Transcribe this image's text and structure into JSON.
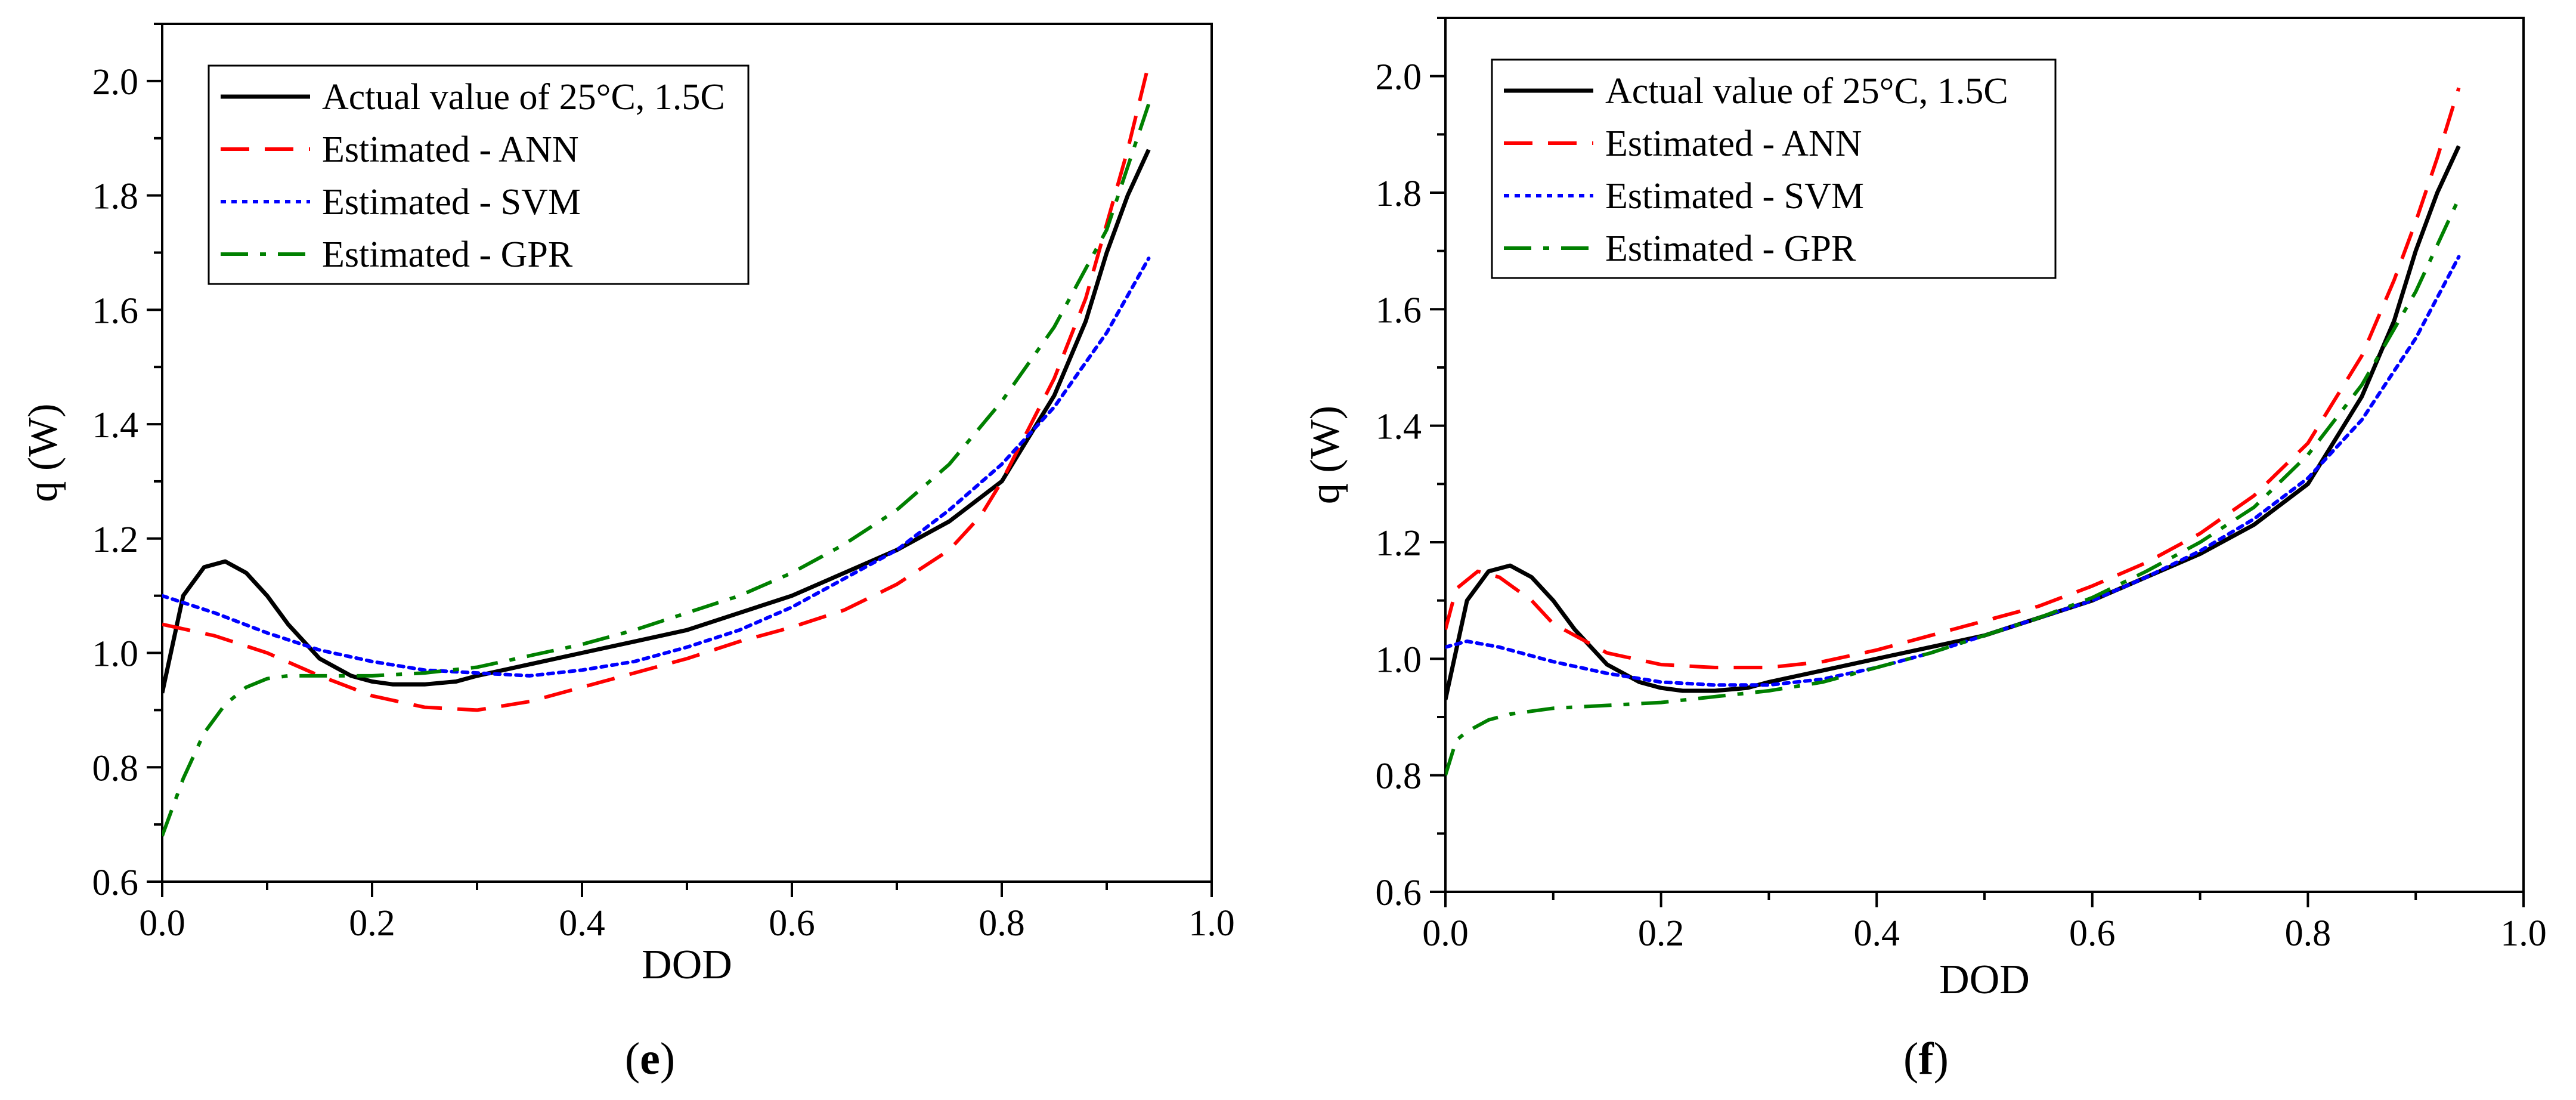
{
  "colors": {
    "actual": "#000000",
    "ann": "#ff0000",
    "svm": "#0000ff",
    "gpr": "#008000"
  },
  "panels": [
    {
      "label": "e"
    },
    {
      "label": "f"
    }
  ],
  "chart_data": [
    {
      "type": "line",
      "panel": "e",
      "xlabel": "DOD",
      "ylabel": "q (W)",
      "xlim": [
        0.0,
        1.0
      ],
      "ylim": [
        0.6,
        2.1
      ],
      "xticks": [
        "0.0",
        "0.2",
        "0.4",
        "0.6",
        "0.8",
        "1.0"
      ],
      "yticks": [
        "0.6",
        "0.8",
        "1.0",
        "1.2",
        "1.4",
        "1.6",
        "1.8",
        "2.0"
      ],
      "legend_position": "top-left",
      "series": [
        {
          "name": "Actual value of 25°C, 1.5C",
          "style": "solid",
          "color": "#000000",
          "x": [
            0.0,
            0.02,
            0.04,
            0.06,
            0.08,
            0.1,
            0.12,
            0.15,
            0.18,
            0.2,
            0.22,
            0.25,
            0.28,
            0.3,
            0.35,
            0.4,
            0.45,
            0.5,
            0.55,
            0.6,
            0.65,
            0.7,
            0.75,
            0.8,
            0.85,
            0.88,
            0.9,
            0.92,
            0.94
          ],
          "y": [
            0.93,
            1.1,
            1.15,
            1.16,
            1.14,
            1.1,
            1.05,
            0.99,
            0.96,
            0.95,
            0.945,
            0.945,
            0.95,
            0.96,
            0.98,
            1.0,
            1.02,
            1.04,
            1.07,
            1.1,
            1.14,
            1.18,
            1.23,
            1.3,
            1.45,
            1.58,
            1.7,
            1.8,
            1.88
          ]
        },
        {
          "name": "Estimated - ANN",
          "style": "dashed",
          "color": "#ff0000",
          "x": [
            0.0,
            0.05,
            0.1,
            0.15,
            0.2,
            0.25,
            0.3,
            0.35,
            0.4,
            0.45,
            0.5,
            0.55,
            0.6,
            0.65,
            0.7,
            0.75,
            0.78,
            0.8,
            0.85,
            0.88,
            0.9,
            0.92,
            0.94
          ],
          "y": [
            1.05,
            1.03,
            1.0,
            0.96,
            0.925,
            0.905,
            0.9,
            0.915,
            0.94,
            0.965,
            0.99,
            1.02,
            1.045,
            1.075,
            1.12,
            1.18,
            1.24,
            1.3,
            1.48,
            1.62,
            1.75,
            1.88,
            2.03
          ]
        },
        {
          "name": "Estimated - SVM",
          "style": "dotted",
          "color": "#0000ff",
          "x": [
            0.0,
            0.05,
            0.1,
            0.15,
            0.2,
            0.25,
            0.3,
            0.35,
            0.4,
            0.45,
            0.5,
            0.55,
            0.6,
            0.65,
            0.7,
            0.75,
            0.8,
            0.85,
            0.9,
            0.94
          ],
          "y": [
            1.1,
            1.07,
            1.035,
            1.005,
            0.985,
            0.97,
            0.965,
            0.96,
            0.97,
            0.985,
            1.01,
            1.04,
            1.08,
            1.13,
            1.18,
            1.25,
            1.33,
            1.43,
            1.56,
            1.69
          ]
        },
        {
          "name": "Estimated - GPR",
          "style": "dashdot",
          "color": "#008000",
          "x": [
            0.0,
            0.02,
            0.04,
            0.06,
            0.08,
            0.1,
            0.12,
            0.15,
            0.2,
            0.25,
            0.3,
            0.35,
            0.4,
            0.45,
            0.5,
            0.55,
            0.6,
            0.65,
            0.7,
            0.75,
            0.8,
            0.85,
            0.9,
            0.94
          ],
          "y": [
            0.68,
            0.78,
            0.86,
            0.91,
            0.94,
            0.955,
            0.96,
            0.96,
            0.96,
            0.965,
            0.975,
            0.995,
            1.015,
            1.04,
            1.07,
            1.1,
            1.14,
            1.19,
            1.25,
            1.33,
            1.44,
            1.57,
            1.74,
            1.96
          ]
        }
      ]
    },
    {
      "type": "line",
      "panel": "f",
      "xlabel": "DOD",
      "ylabel": "q (W)",
      "xlim": [
        0.0,
        1.0
      ],
      "ylim": [
        0.6,
        2.1
      ],
      "xticks": [
        "0.0",
        "0.2",
        "0.4",
        "0.6",
        "0.8",
        "1.0"
      ],
      "yticks": [
        "0.6",
        "0.8",
        "1.0",
        "1.2",
        "1.4",
        "1.6",
        "1.8",
        "2.0"
      ],
      "legend_position": "top-left",
      "series": [
        {
          "name": "Actual value of 25°C, 1.5C",
          "style": "solid",
          "color": "#000000",
          "x": [
            0.0,
            0.02,
            0.04,
            0.06,
            0.08,
            0.1,
            0.12,
            0.15,
            0.18,
            0.2,
            0.22,
            0.25,
            0.28,
            0.3,
            0.35,
            0.4,
            0.45,
            0.5,
            0.55,
            0.6,
            0.65,
            0.7,
            0.75,
            0.8,
            0.85,
            0.88,
            0.9,
            0.92,
            0.94
          ],
          "y": [
            0.93,
            1.1,
            1.15,
            1.16,
            1.14,
            1.1,
            1.05,
            0.99,
            0.96,
            0.95,
            0.945,
            0.945,
            0.95,
            0.96,
            0.98,
            1.0,
            1.02,
            1.04,
            1.07,
            1.1,
            1.14,
            1.18,
            1.23,
            1.3,
            1.45,
            1.58,
            1.7,
            1.8,
            1.88
          ]
        },
        {
          "name": "Estimated - ANN",
          "style": "dashed",
          "color": "#ff0000",
          "x": [
            0.0,
            0.01,
            0.03,
            0.05,
            0.08,
            0.1,
            0.15,
            0.2,
            0.25,
            0.3,
            0.35,
            0.4,
            0.45,
            0.5,
            0.55,
            0.6,
            0.65,
            0.7,
            0.75,
            0.8,
            0.85,
            0.88,
            0.9,
            0.92,
            0.94
          ],
          "y": [
            1.05,
            1.12,
            1.15,
            1.14,
            1.1,
            1.06,
            1.01,
            0.99,
            0.985,
            0.985,
            0.995,
            1.015,
            1.04,
            1.065,
            1.09,
            1.125,
            1.165,
            1.215,
            1.28,
            1.37,
            1.52,
            1.65,
            1.75,
            1.86,
            1.98
          ]
        },
        {
          "name": "Estimated - SVM",
          "style": "dotted",
          "color": "#0000ff",
          "x": [
            0.0,
            0.02,
            0.05,
            0.1,
            0.15,
            0.2,
            0.25,
            0.3,
            0.35,
            0.4,
            0.45,
            0.5,
            0.55,
            0.6,
            0.65,
            0.7,
            0.75,
            0.8,
            0.85,
            0.9,
            0.94
          ],
          "y": [
            1.02,
            1.03,
            1.02,
            0.995,
            0.975,
            0.96,
            0.955,
            0.955,
            0.965,
            0.985,
            1.01,
            1.04,
            1.07,
            1.1,
            1.14,
            1.185,
            1.24,
            1.31,
            1.41,
            1.55,
            1.69
          ]
        },
        {
          "name": "Estimated - GPR",
          "style": "dashdot",
          "color": "#008000",
          "x": [
            0.0,
            0.01,
            0.02,
            0.04,
            0.06,
            0.08,
            0.1,
            0.15,
            0.2,
            0.25,
            0.3,
            0.35,
            0.4,
            0.45,
            0.5,
            0.55,
            0.6,
            0.65,
            0.7,
            0.75,
            0.8,
            0.85,
            0.9,
            0.94
          ],
          "y": [
            0.8,
            0.86,
            0.875,
            0.895,
            0.905,
            0.91,
            0.915,
            0.92,
            0.925,
            0.935,
            0.945,
            0.96,
            0.985,
            1.01,
            1.04,
            1.07,
            1.105,
            1.15,
            1.2,
            1.26,
            1.35,
            1.47,
            1.63,
            1.79
          ]
        }
      ]
    }
  ]
}
